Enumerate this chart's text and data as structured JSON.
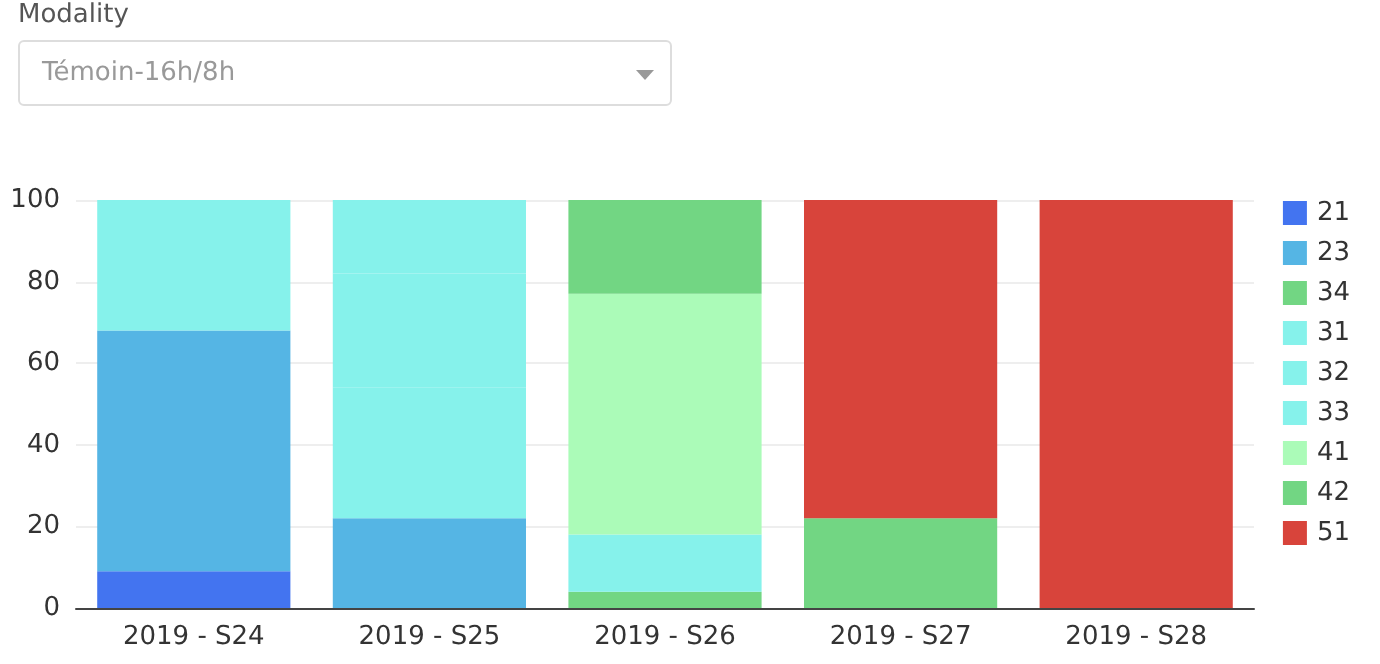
{
  "chart_data": {
    "type": "bar",
    "stacked": true,
    "annotations": [
      "Modality",
      "Témoin-16h/8h"
    ],
    "categories": [
      "2019 - S24",
      "2019 - S25",
      "2019 - S26",
      "2019 - S27",
      "2019 - S28"
    ],
    "series": [
      {
        "name": "21",
        "color": "#3d6ff0",
        "values": [
          9,
          null,
          null,
          null,
          null
        ]
      },
      {
        "name": "23",
        "color": "#4fb3e3",
        "values": [
          59,
          22,
          null,
          null,
          null
        ]
      },
      {
        "name": "34",
        "color": "#6dd57f",
        "values": [
          null,
          null,
          4,
          null,
          null
        ]
      },
      {
        "name": "31",
        "color": "#82f2ea",
        "values": [
          32,
          32,
          14,
          null,
          null
        ]
      },
      {
        "name": "32",
        "color": "#82f2ea",
        "values": [
          null,
          28,
          null,
          null,
          null
        ]
      },
      {
        "name": "33",
        "color": "#82f2ea",
        "values": [
          null,
          18,
          null,
          null,
          null
        ]
      },
      {
        "name": "41",
        "color": "#a8fbb6",
        "values": [
          null,
          null,
          59,
          null,
          null
        ]
      },
      {
        "name": "42",
        "color": "#6dd57f",
        "values": [
          null,
          null,
          23,
          22,
          null
        ]
      },
      {
        "name": "51",
        "color": "#d73e35",
        "values": [
          null,
          null,
          null,
          78,
          100
        ]
      }
    ],
    "ylim": [
      0,
      100
    ],
    "yticks": [
      0,
      20,
      40,
      60,
      80,
      100
    ],
    "grid": "y",
    "legend": "right"
  }
}
